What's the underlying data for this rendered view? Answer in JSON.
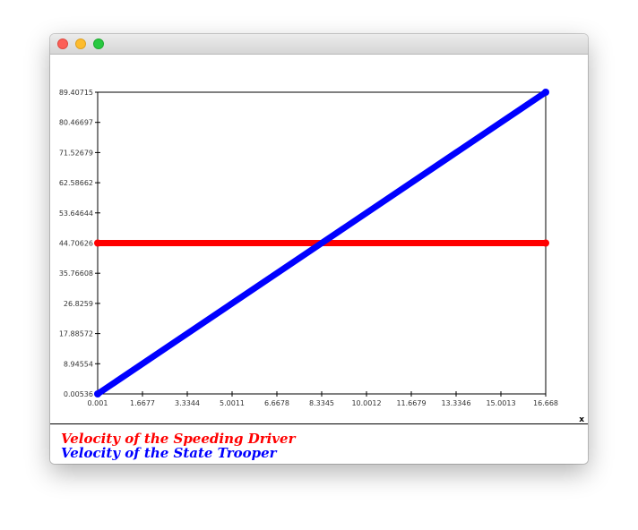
{
  "window": {
    "controls": {
      "close_icon": "close-icon",
      "minimize_icon": "minimize-icon",
      "maximize_icon": "maximize-icon"
    }
  },
  "chart_data": {
    "type": "line",
    "title": "",
    "xlabel": "x",
    "ylabel": "",
    "xlim": [
      0.001,
      16.668
    ],
    "ylim": [
      0.00536,
      89.40715
    ],
    "x_ticks": [
      "0.001",
      "1.6677",
      "3.3344",
      "5.0011",
      "6.6678",
      "8.3345",
      "10.0012",
      "11.6679",
      "13.3346",
      "15.0013",
      "16.668"
    ],
    "y_ticks": [
      "0.00536",
      "8.94554",
      "17.88572",
      "26.8259",
      "35.76608",
      "44.70626",
      "53.64644",
      "62.58662",
      "71.52679",
      "80.46697",
      "89.40715"
    ],
    "grid": false,
    "legend_placement": "bottom-left",
    "series": [
      {
        "name": "Velocity of the Speeding Driver",
        "color": "#ff0000",
        "points": [
          [
            0.001,
            44.70626
          ],
          [
            16.668,
            44.70626
          ]
        ]
      },
      {
        "name": "Velocity of the State Trooper",
        "color": "#0000ff",
        "points": [
          [
            0.001,
            0.00536
          ],
          [
            16.668,
            89.40715
          ]
        ]
      }
    ]
  }
}
